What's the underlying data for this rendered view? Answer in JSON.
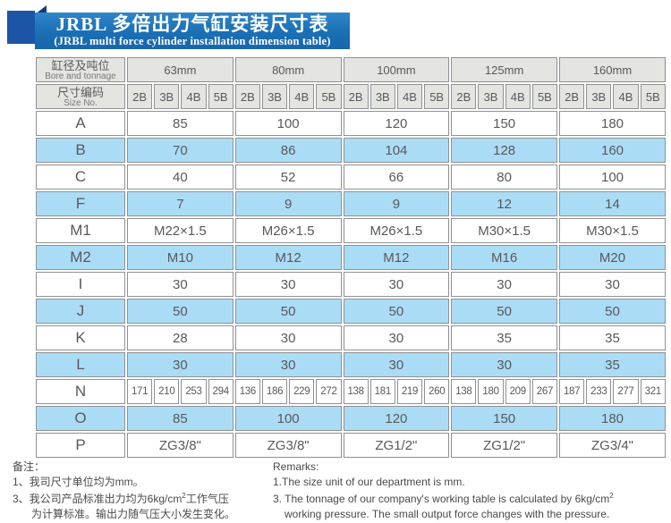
{
  "title": {
    "zh": "JRBL 多倍出力气缸安装尺寸表",
    "en": "(JRBL multi force cylinder installation dimension table)"
  },
  "table": {
    "header": {
      "col1_zh": "缸径及吨位",
      "col1_en": "Bore and tonnage",
      "col2_zh": "尺寸编码",
      "col2_en": "Size No.",
      "bores": [
        "63mm",
        "80mm",
        "100mm",
        "125mm",
        "160mm"
      ],
      "size_codes": [
        "2B",
        "3B",
        "4B",
        "5B"
      ]
    },
    "rows": [
      {
        "label": "A",
        "shade": false,
        "values": [
          "85",
          "100",
          "120",
          "150",
          "180"
        ]
      },
      {
        "label": "B",
        "shade": true,
        "values": [
          "70",
          "86",
          "104",
          "128",
          "160"
        ]
      },
      {
        "label": "C",
        "shade": false,
        "values": [
          "40",
          "52",
          "66",
          "80",
          "100"
        ]
      },
      {
        "label": "F",
        "shade": true,
        "values": [
          "7",
          "9",
          "9",
          "12",
          "14"
        ]
      },
      {
        "label": "M1",
        "shade": false,
        "values": [
          "M22×1.5",
          "M26×1.5",
          "M26×1.5",
          "M30×1.5",
          "M30×1.5"
        ]
      },
      {
        "label": "M2",
        "shade": true,
        "values": [
          "M10",
          "M12",
          "M12",
          "M16",
          "M20"
        ]
      },
      {
        "label": "I",
        "shade": false,
        "values": [
          "30",
          "30",
          "30",
          "30",
          "30"
        ]
      },
      {
        "label": "J",
        "shade": true,
        "values": [
          "50",
          "50",
          "50",
          "50",
          "50"
        ]
      },
      {
        "label": "K",
        "shade": false,
        "values": [
          "28",
          "30",
          "30",
          "35",
          "35"
        ]
      },
      {
        "label": "L",
        "shade": true,
        "values": [
          "30",
          "30",
          "30",
          "30",
          "35"
        ]
      },
      {
        "label": "N",
        "shade": false,
        "values": [
          "171",
          "210",
          "253",
          "294",
          "136",
          "186",
          "229",
          "272",
          "138",
          "181",
          "219",
          "260",
          "138",
          "180",
          "209",
          "267",
          "187",
          "233",
          "277",
          "321"
        ]
      },
      {
        "label": "O",
        "shade": true,
        "values": [
          "85",
          "100",
          "120",
          "150",
          "180"
        ]
      },
      {
        "label": "P",
        "shade": false,
        "values": [
          "ZG3/8\"",
          "ZG3/8\"",
          "ZG1/2\"",
          "ZG1/2\"",
          "ZG3/4\""
        ]
      }
    ]
  },
  "notes_zh": {
    "heading": "备注：",
    "line1": "1、我司尺寸单位均为mm。",
    "line2_pre": "3、我公司产品标准出力均为6kg/cm",
    "line2_sup": "2",
    "line2_post": "工作气压",
    "line3": "为计算标准。输出力随气压大小发生变化。"
  },
  "notes_en": {
    "heading": "Remarks:",
    "line1": "1.The size unit of our department is mm.",
    "line2_pre": "3. The tonnage of our company's working table is calculated by 6kg/cm",
    "line2_sup": "2",
    "line3": "working pressure. The small output force changes with the pressure."
  },
  "colors": {
    "banner_blue": "#1b6fb4",
    "ribbon_blue": "#1c55a5",
    "ribbon_fold_blue": "#0e3d7d",
    "header_gray": "#e4e4e0",
    "row_shade_blue": "#abdcf6",
    "grid_line": "#8f9193",
    "text_gray": "#58595b"
  }
}
